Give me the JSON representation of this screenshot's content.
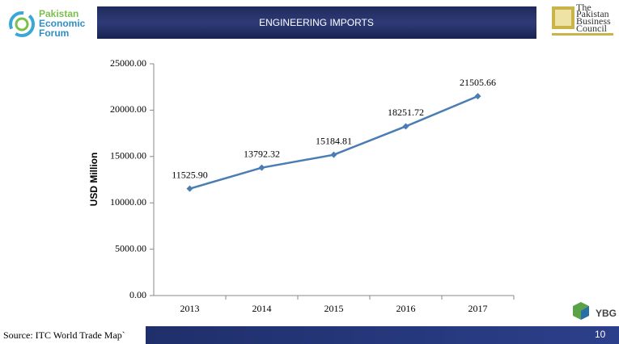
{
  "slide": {
    "left_logo": [
      "Pakistan",
      "Economic",
      "Forum"
    ],
    "right_logo": [
      "The",
      "Pakistan",
      "Business",
      "Council"
    ],
    "bottom_logo": "YBG",
    "source": "Source: ITC World Trade Map`",
    "page_number": "10"
  },
  "chart_data": {
    "type": "line",
    "title": "ENGINEERING IMPORTS",
    "y_label": "USD Million",
    "categories": [
      "2013",
      "2014",
      "2015",
      "2016",
      "2017"
    ],
    "values": [
      11525.9,
      13792.32,
      15184.81,
      18251.72,
      21505.66
    ],
    "value_labels": [
      "11525.90",
      "13792.32",
      "15184.81",
      "18251.72",
      "21505.66"
    ],
    "color": "#4a7db4",
    "ylim": [
      0,
      25000
    ],
    "yticks": [
      {
        "value": 0,
        "label": "0.00"
      },
      {
        "value": 5000,
        "label": "5000.00"
      },
      {
        "value": 10000,
        "label": "10000.00"
      },
      {
        "value": 15000,
        "label": "15000.00"
      },
      {
        "value": 20000,
        "label": "20000.00"
      },
      {
        "value": 25000,
        "label": "25000.00"
      }
    ]
  }
}
